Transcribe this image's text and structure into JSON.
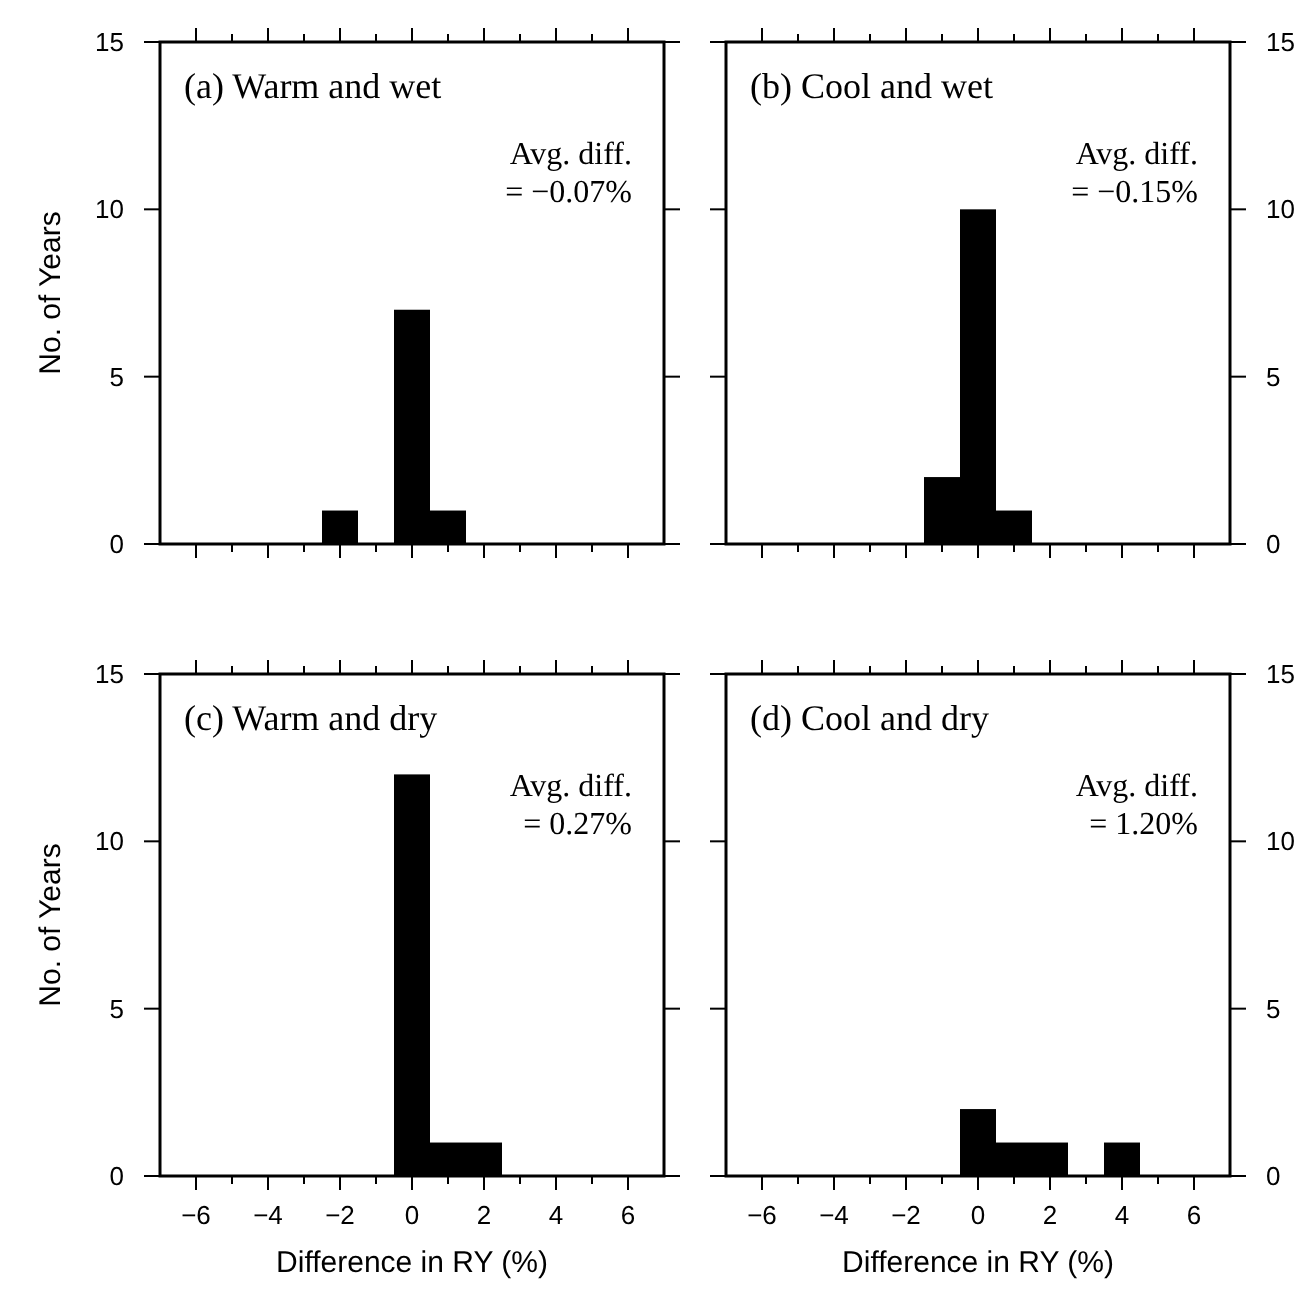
{
  "chart_data": [
    {
      "type": "histogram",
      "title": "(a) Warm and wet",
      "annotations": [
        "Avg. diff.\n= −0.07%"
      ],
      "ylabel": "No. of Years",
      "bins": [
        -6.5,
        -5.5,
        -4.5,
        -3.5,
        -2.5,
        -1.5,
        -0.5,
        0.5,
        1.5,
        2.5,
        3.5,
        4.5,
        5.5,
        6.5
      ],
      "values": [
        0,
        0,
        0,
        0,
        1,
        0,
        7,
        1,
        0,
        0,
        0,
        0,
        0
      ],
      "color": "#000000",
      "xlim": [
        -7,
        7
      ],
      "xticks": [
        -6,
        {
          "value": -5,
          "label": null
        },
        -4,
        {
          "value": -3,
          "label": null
        },
        -2,
        {
          "value": -1,
          "label": null
        },
        0,
        {
          "value": 1,
          "label": null
        },
        2,
        {
          "value": 3,
          "label": null
        },
        4,
        {
          "value": 5,
          "label": null
        },
        6
      ],
      "ylim": [
        0,
        15
      ],
      "yticks": [
        0,
        5,
        10,
        15
      ],
      "tick_labels": "y"
    },
    {
      "type": "histogram",
      "title": "(b) Cool and wet",
      "annotations": [
        "Avg. diff.\n= −0.15%"
      ],
      "bins": [
        -6.5,
        -5.5,
        -4.5,
        -3.5,
        -2.5,
        -1.5,
        -0.5,
        0.5,
        1.5,
        2.5,
        3.5,
        4.5,
        5.5,
        6.5
      ],
      "values": [
        0,
        0,
        0,
        0,
        0,
        2,
        10,
        1,
        0,
        0,
        0,
        0,
        0
      ],
      "color": "#000000",
      "xlim": [
        -7,
        7
      ],
      "xticks": [
        -6,
        {
          "value": -5,
          "label": null
        },
        -4,
        {
          "value": -3,
          "label": null
        },
        -2,
        {
          "value": -1,
          "label": null
        },
        0,
        {
          "value": 1,
          "label": null
        },
        2,
        {
          "value": 3,
          "label": null
        },
        4,
        {
          "value": 5,
          "label": null
        },
        6
      ],
      "ylim": [
        0,
        15
      ],
      "yticks": [
        0,
        5,
        10,
        15
      ],
      "tick_labels": "y"
    },
    {
      "type": "histogram",
      "title": "(c) Warm and dry",
      "annotations": [
        "Avg. diff.\n= 0.27%"
      ],
      "xlabel": "Difference in RY (%)",
      "ylabel": "No. of Years",
      "bins": [
        -6.5,
        -5.5,
        -4.5,
        -3.5,
        -2.5,
        -1.5,
        -0.5,
        0.5,
        1.5,
        2.5,
        3.5,
        4.5,
        5.5,
        6.5
      ],
      "values": [
        0,
        0,
        0,
        0,
        0,
        0,
        12,
        1,
        1,
        0,
        0,
        0,
        0
      ],
      "color": "#000000",
      "xlim": [
        -7,
        7
      ],
      "xticks": [
        -6,
        {
          "value": -5,
          "label": null
        },
        -4,
        {
          "value": -3,
          "label": null
        },
        -2,
        {
          "value": -1,
          "label": null
        },
        0,
        {
          "value": 1,
          "label": null
        },
        2,
        {
          "value": 3,
          "label": null
        },
        4,
        {
          "value": 5,
          "label": null
        },
        6
      ],
      "ylim": [
        0,
        15
      ],
      "yticks": [
        0,
        5,
        10,
        15
      ]
    },
    {
      "type": "histogram",
      "title": "(d) Cool and dry",
      "annotations": [
        "Avg. diff.\n= 1.20%"
      ],
      "xlabel": "Difference in RY (%)",
      "bins": [
        -6.5,
        -5.5,
        -4.5,
        -3.5,
        -2.5,
        -1.5,
        -0.5,
        0.5,
        1.5,
        2.5,
        3.5,
        4.5,
        5.5,
        6.5
      ],
      "values": [
        0,
        0,
        0,
        0,
        0,
        0,
        2,
        1,
        1,
        0,
        1,
        0,
        0
      ],
      "color": "#000000",
      "xlim": [
        -7,
        7
      ],
      "xticks": [
        -6,
        {
          "value": -5,
          "label": null
        },
        -4,
        {
          "value": -3,
          "label": null
        },
        -2,
        {
          "value": -1,
          "label": null
        },
        0,
        {
          "value": 1,
          "label": null
        },
        2,
        {
          "value": 3,
          "label": null
        },
        4,
        {
          "value": 5,
          "label": null
        },
        6
      ],
      "ylim": [
        0,
        15
      ],
      "yticks": [
        0,
        5,
        10,
        15
      ]
    }
  ]
}
